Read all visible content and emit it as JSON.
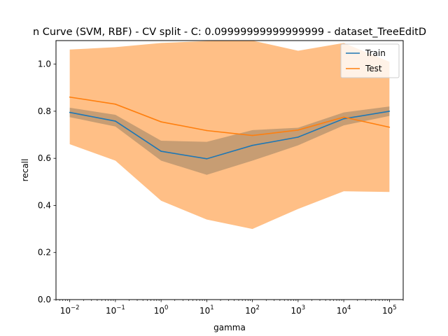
{
  "chart_data": {
    "type": "line",
    "title": "n Curve (SVM, RBF) - CV split - C: 0.09999999999999999 - dataset_TreeEditD",
    "xlabel": "gamma",
    "ylabel": "recall",
    "xscale": "log",
    "x": [
      0.01,
      0.1,
      1,
      10,
      100,
      1000,
      10000,
      100000
    ],
    "xlim": [
      0.005,
      200000
    ],
    "ylim": [
      0.0,
      1.1
    ],
    "x_ticks": [
      {
        "base": "10",
        "exp": "−2",
        "value": 0.01
      },
      {
        "base": "10",
        "exp": "−1",
        "value": 0.1
      },
      {
        "base": "10",
        "exp": "0",
        "value": 1
      },
      {
        "base": "10",
        "exp": "1",
        "value": 10
      },
      {
        "base": "10",
        "exp": "2",
        "value": 100
      },
      {
        "base": "10",
        "exp": "3",
        "value": 1000
      },
      {
        "base": "10",
        "exp": "4",
        "value": 10000
      },
      {
        "base": "10",
        "exp": "5",
        "value": 100000
      }
    ],
    "y_ticks": [
      {
        "label": "0.0",
        "value": 0.0
      },
      {
        "label": "0.2",
        "value": 0.2
      },
      {
        "label": "0.4",
        "value": 0.4
      },
      {
        "label": "0.6",
        "value": 0.6
      },
      {
        "label": "0.8",
        "value": 0.8
      },
      {
        "label": "1.0",
        "value": 1.0
      }
    ],
    "grid": false,
    "legend_position": "top-right",
    "series": [
      {
        "name": "Train",
        "color": "#1f77b4",
        "values": [
          0.795,
          0.758,
          0.63,
          0.598,
          0.655,
          0.69,
          0.768,
          0.8
        ],
        "lower": [
          0.775,
          0.735,
          0.59,
          0.53,
          0.59,
          0.655,
          0.74,
          0.78
        ],
        "upper": [
          0.815,
          0.785,
          0.675,
          0.67,
          0.72,
          0.73,
          0.795,
          0.82
        ]
      },
      {
        "name": "Test",
        "color": "#ff7f0e",
        "values": [
          0.86,
          0.83,
          0.755,
          0.718,
          0.697,
          0.72,
          0.775,
          0.732
        ],
        "lower": [
          0.66,
          0.59,
          0.42,
          0.34,
          0.3,
          0.385,
          0.46,
          0.457
        ],
        "upper": [
          1.062,
          1.072,
          1.09,
          1.098,
          1.1,
          1.057,
          1.09,
          1.01
        ]
      }
    ]
  }
}
